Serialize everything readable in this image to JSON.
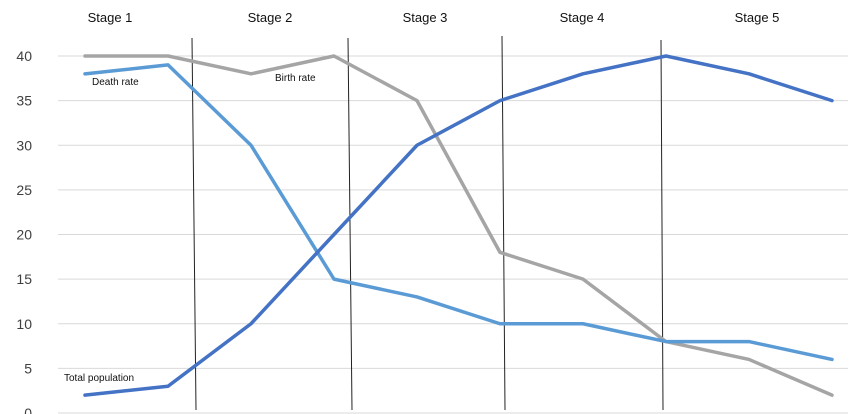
{
  "chart_data": {
    "type": "line",
    "title": "",
    "xlabel": "",
    "ylabel": "",
    "ylim": [
      0,
      40
    ],
    "yticks": [
      0,
      5,
      10,
      15,
      20,
      25,
      30,
      35,
      40
    ],
    "grid": true,
    "stages": [
      "Stage 1",
      "Stage 2",
      "Stage 3",
      "Stage 4",
      "Stage 5"
    ],
    "x": [
      1,
      2,
      3,
      4,
      5,
      6,
      7,
      8,
      9,
      10
    ],
    "series": [
      {
        "name": "Birth rate",
        "color": "#a5a5a5",
        "values": [
          40,
          40,
          38,
          40,
          35,
          18,
          15,
          8,
          6,
          2
        ]
      },
      {
        "name": "Death rate",
        "color": "#5b9bd5",
        "values": [
          38,
          39,
          30,
          15,
          13,
          10,
          10,
          8,
          8,
          6
        ]
      },
      {
        "name": "Total population",
        "color": "#4472c4",
        "values": [
          2,
          3,
          10,
          20,
          30,
          35,
          38,
          40,
          38,
          35
        ]
      }
    ]
  }
}
